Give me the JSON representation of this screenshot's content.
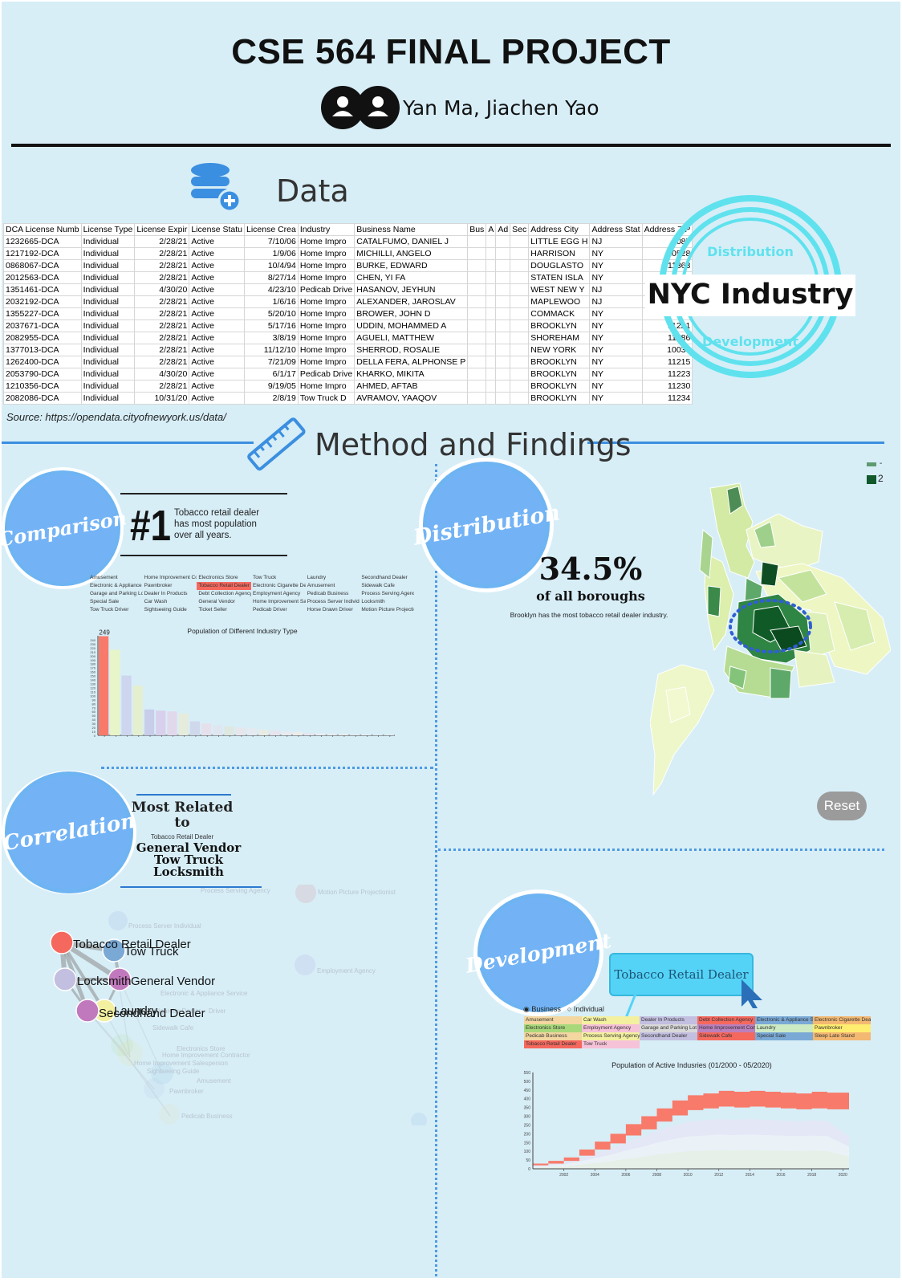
{
  "title": "CSE 564 FINAL PROJECT",
  "authors": "Yan Ma, Jiachen Yao",
  "data_section": {
    "heading": "Data",
    "source": "Source: https://opendata.cityofnewyork.us/data/",
    "columns": [
      "DCA License Numb",
      "License Type",
      "License Expir",
      "License Statu",
      "License Crea",
      "Industry",
      "Business Name",
      "Bus",
      "A",
      "Ad",
      "Sec",
      "Address City",
      "Address Stat",
      "Address ZIP"
    ],
    "rows": [
      [
        "1232665-DCA",
        "Individual",
        "2/28/21",
        "Active",
        "7/10/06",
        "Home Impro",
        "CATALFUMO, DANIEL J",
        "",
        "",
        "",
        "",
        "LITTLE EGG H",
        "NJ",
        "8087"
      ],
      [
        "1217192-DCA",
        "Individual",
        "2/28/21",
        "Active",
        "1/9/06",
        "Home Impro",
        "MICHILLI, ANGELO",
        "",
        "",
        "",
        "",
        "HARRISON",
        "NY",
        "10528"
      ],
      [
        "0868067-DCA",
        "Individual",
        "2/28/21",
        "Active",
        "10/4/94",
        "Home Impro",
        "BURKE, EDWARD",
        "",
        "",
        "",
        "",
        "DOUGLASTO",
        "NY",
        "11363"
      ],
      [
        "2012563-DCA",
        "Individual",
        "2/28/21",
        "Active",
        "8/27/14",
        "Home Impro",
        "CHEN, YI FA",
        "",
        "",
        "",
        "",
        "STATEN ISLA",
        "NY",
        "10306"
      ],
      [
        "1351461-DCA",
        "Individual",
        "4/30/20",
        "Active",
        "4/23/10",
        "Pedicab Drive",
        "HASANOV, JEYHUN",
        "",
        "",
        "",
        "",
        "WEST NEW Y",
        "NJ",
        "7093"
      ],
      [
        "2032192-DCA",
        "Individual",
        "2/28/21",
        "Active",
        "1/6/16",
        "Home Impro",
        "ALEXANDER, JAROSLAV",
        "",
        "",
        "",
        "",
        "MAPLEWOO",
        "NJ",
        "7040"
      ],
      [
        "1355227-DCA",
        "Individual",
        "2/28/21",
        "Active",
        "5/20/10",
        "Home Impro",
        "BROWER, JOHN D",
        "",
        "",
        "",
        "",
        "COMMACK",
        "NY",
        "11725"
      ],
      [
        "2037671-DCA",
        "Individual",
        "2/28/21",
        "Active",
        "5/17/16",
        "Home Impro",
        "UDDIN, MOHAMMED A",
        "",
        "",
        "",
        "",
        "BROOKLYN",
        "NY",
        "11221"
      ],
      [
        "2082955-DCA",
        "Individual",
        "2/28/21",
        "Active",
        "3/8/19",
        "Home Impro",
        "AGUELI, MATTHEW",
        "",
        "",
        "",
        "",
        "SHOREHAM",
        "NY",
        "11786"
      ],
      [
        "1377013-DCA",
        "Individual",
        "2/28/21",
        "Active",
        "11/12/10",
        "Home Impro",
        "SHERROD, ROSALIE",
        "",
        "",
        "",
        "",
        "NEW YORK",
        "NY",
        "10030"
      ],
      [
        "1262400-DCA",
        "Individual",
        "2/28/21",
        "Active",
        "7/21/09",
        "Home Impro",
        "DELLA FERA, ALPHONSE P",
        "",
        "",
        "",
        "",
        "BROOKLYN",
        "NY",
        "11215"
      ],
      [
        "2053790-DCA",
        "Individual",
        "4/30/20",
        "Active",
        "6/1/17",
        "Pedicab Drive",
        "KHARKO, MIKITA",
        "",
        "",
        "",
        "",
        "BROOKLYN",
        "NY",
        "11223"
      ],
      [
        "1210356-DCA",
        "Individual",
        "2/28/21",
        "Active",
        "9/19/05",
        "Home Impro",
        "AHMED, AFTAB",
        "",
        "",
        "",
        "",
        "BROOKLYN",
        "NY",
        "11230"
      ],
      [
        "2082086-DCA",
        "Individual",
        "10/31/20",
        "Active",
        "2/8/19",
        "Tow Truck D",
        "AVRAMOV, YAAQOV",
        "",
        "",
        "",
        "",
        "BROOKLYN",
        "NY",
        "11234"
      ]
    ]
  },
  "logo": {
    "top": "Distribution",
    "main": "NYC Industry",
    "bottom": "Development"
  },
  "method_heading": "Method and Findings",
  "comparison": {
    "badge": "Comparison",
    "rank": "#1",
    "text": "Tobacco retail dealer has most population over all years.",
    "legend": [
      [
        "Amusement",
        "Home Improvement Contractor",
        "Electronics Store",
        "Tow Truck",
        "Laundry",
        "Secondhand Dealer"
      ],
      [
        "Electronic & Appliance Service",
        "Pawnbroker",
        "Tobacco Retail Dealer",
        "Electronic Cigarette Dealer",
        "Amusement",
        "Sidewalk Cafe"
      ],
      [
        "Garage and Parking Lot",
        "Dealer In Products",
        "Debt Collection Agency",
        "Employment Agency",
        "Pedicab Business",
        "Process Serving Agency"
      ],
      [
        "Special Sale",
        "Car Wash",
        "General Vendor",
        "Home Improvement Salesperson",
        "Process Server Individual",
        "Locksmith"
      ],
      [
        "Tow Truck Driver",
        "Sightseeing Guide",
        "Ticket Seller",
        "Pedicab Driver",
        "Horse Drawn Driver",
        "Motion Picture Projectionist"
      ]
    ]
  },
  "distribution": {
    "badge": "Distribution",
    "percent": "34.5%",
    "sub": "of all boroughs",
    "note": "Brooklyn has the most tobacco retail dealer industry.",
    "legend": [
      "-",
      "2"
    ],
    "reset_label": "Reset"
  },
  "correlation": {
    "badge": "Correlation",
    "heading1": "Most Related",
    "heading2": "to",
    "subject": "Tobacco Retail Dealer",
    "items": [
      "General Vendor",
      "Tow Truck",
      "Locksmith"
    ],
    "nodes": [
      {
        "label": "Tobacco Retail Dealer",
        "color": "#f5685e"
      },
      {
        "label": "Tow Truck",
        "color": "#7aa9d6"
      },
      {
        "label": "Locksmith",
        "color": "#c3bfe0"
      },
      {
        "label": "General Vendor",
        "color": "#c179bd"
      },
      {
        "label": "Laundry",
        "color": "#f3f0a0"
      },
      {
        "label": "Secondhand Dealer",
        "color": "#c179bd"
      }
    ],
    "faint_labels": [
      "Process Serving Agency",
      "Motion Picture Projectionist",
      "Process Server Individual",
      "Employment Agency",
      "Electronic & Appliance Service",
      "Cigarette Dealer",
      "Sidewalk Cafe",
      "Electronics Store",
      "Home Improvement Contractor",
      "Home Improvement Salesperson",
      "Sightseeing Guide",
      "Amusement",
      "Pawnbroker",
      "Pedicab Business",
      "Driver"
    ]
  },
  "development": {
    "badge": "Development",
    "tooltip": "Tobacco Retail Dealer",
    "radio": [
      "Business",
      "Individual"
    ],
    "legend": [
      [
        "Amusement",
        "Car Wash",
        "Dealer In Products",
        "Debt Collection Agency",
        "Electronic & Appliance Service",
        "Electronic Cigarette Dealer"
      ],
      [
        "Electronics Store",
        "Employment Agency",
        "Garage and Parking Lot",
        "Home Improvement Contractor",
        "Laundry",
        "Pawnbroker"
      ],
      [
        "Pedicab Business",
        "Process Serving Agency",
        "Secondhand Dealer",
        "Sidewalk Cafe",
        "Special Sale",
        "Sleep Late Stand"
      ],
      [
        "Tobacco Retail Dealer",
        "Tow Truck",
        "",
        "",
        "",
        ""
      ]
    ]
  },
  "chart_data": [
    {
      "type": "bar",
      "title": "Population of Different Industry Type",
      "xlabel": "",
      "ylabel": "",
      "ylim": [
        0,
        250
      ],
      "top_label": "249",
      "yticks": [
        "0",
        "10",
        "20",
        "30",
        "40",
        "50",
        "60",
        "70",
        "80",
        "90",
        "100",
        "110",
        "120",
        "130",
        "140",
        "150",
        "160",
        "170",
        "180",
        "190",
        "200",
        "210",
        "220",
        "230",
        "240"
      ],
      "values": [
        249,
        215,
        150,
        125,
        65,
        62,
        60,
        55,
        35,
        30,
        25,
        22,
        20,
        18,
        14,
        12,
        10,
        8,
        6,
        5,
        4,
        3,
        2,
        2,
        1,
        1
      ],
      "colors": [
        "#f87a6a",
        "#e8f5c8",
        "#cdd6ee",
        "#e4efd0",
        "#c8cde9",
        "#d8d0ec",
        "#e2d8ec",
        "#e5ecdc",
        "#d0d8ec",
        "#e6e0ec",
        "#e0e6f0",
        "#dfe8e0",
        "#e6e6ec",
        "#e4eaf0",
        "#e8ece4",
        "#e6e4ec",
        "#e8eaf0",
        "#ecece8",
        "#e6e6ee",
        "#eaeef0",
        "#e8ecf0",
        "#ecece8",
        "#e8e8ee",
        "#ecf0f0",
        "#e8eef0",
        "#ececf0"
      ]
    },
    {
      "type": "area",
      "title": "Population of Active Indusries (01/2000 - 05/2020)",
      "xlabel": "",
      "ylabel": "",
      "ylim": [
        0,
        550
      ],
      "yticks": [
        "0",
        "50",
        "100",
        "150",
        "200",
        "250",
        "300",
        "350",
        "400",
        "450",
        "500",
        "550"
      ],
      "xticks": [
        "2002",
        "2004",
        "2006",
        "2008",
        "2010",
        "2012",
        "2014",
        "2016",
        "2018",
        "2020"
      ],
      "x": [
        2000,
        2001,
        2002,
        2003,
        2004,
        2005,
        2006,
        2007,
        2008,
        2009,
        2010,
        2011,
        2012,
        2013,
        2014,
        2015,
        2016,
        2017,
        2018,
        2019,
        2020.4
      ],
      "series": [
        {
          "name": "Tobacco Retail Dealer",
          "values": [
            20,
            30,
            45,
            75,
            110,
            145,
            190,
            225,
            270,
            305,
            335,
            345,
            355,
            350,
            355,
            350,
            345,
            340,
            345,
            340,
            230
          ]
        },
        {
          "name": "",
          "values": [
            30,
            45,
            65,
            110,
            155,
            200,
            255,
            300,
            345,
            390,
            420,
            430,
            445,
            440,
            445,
            440,
            435,
            430,
            440,
            435,
            300
          ]
        }
      ]
    }
  ]
}
